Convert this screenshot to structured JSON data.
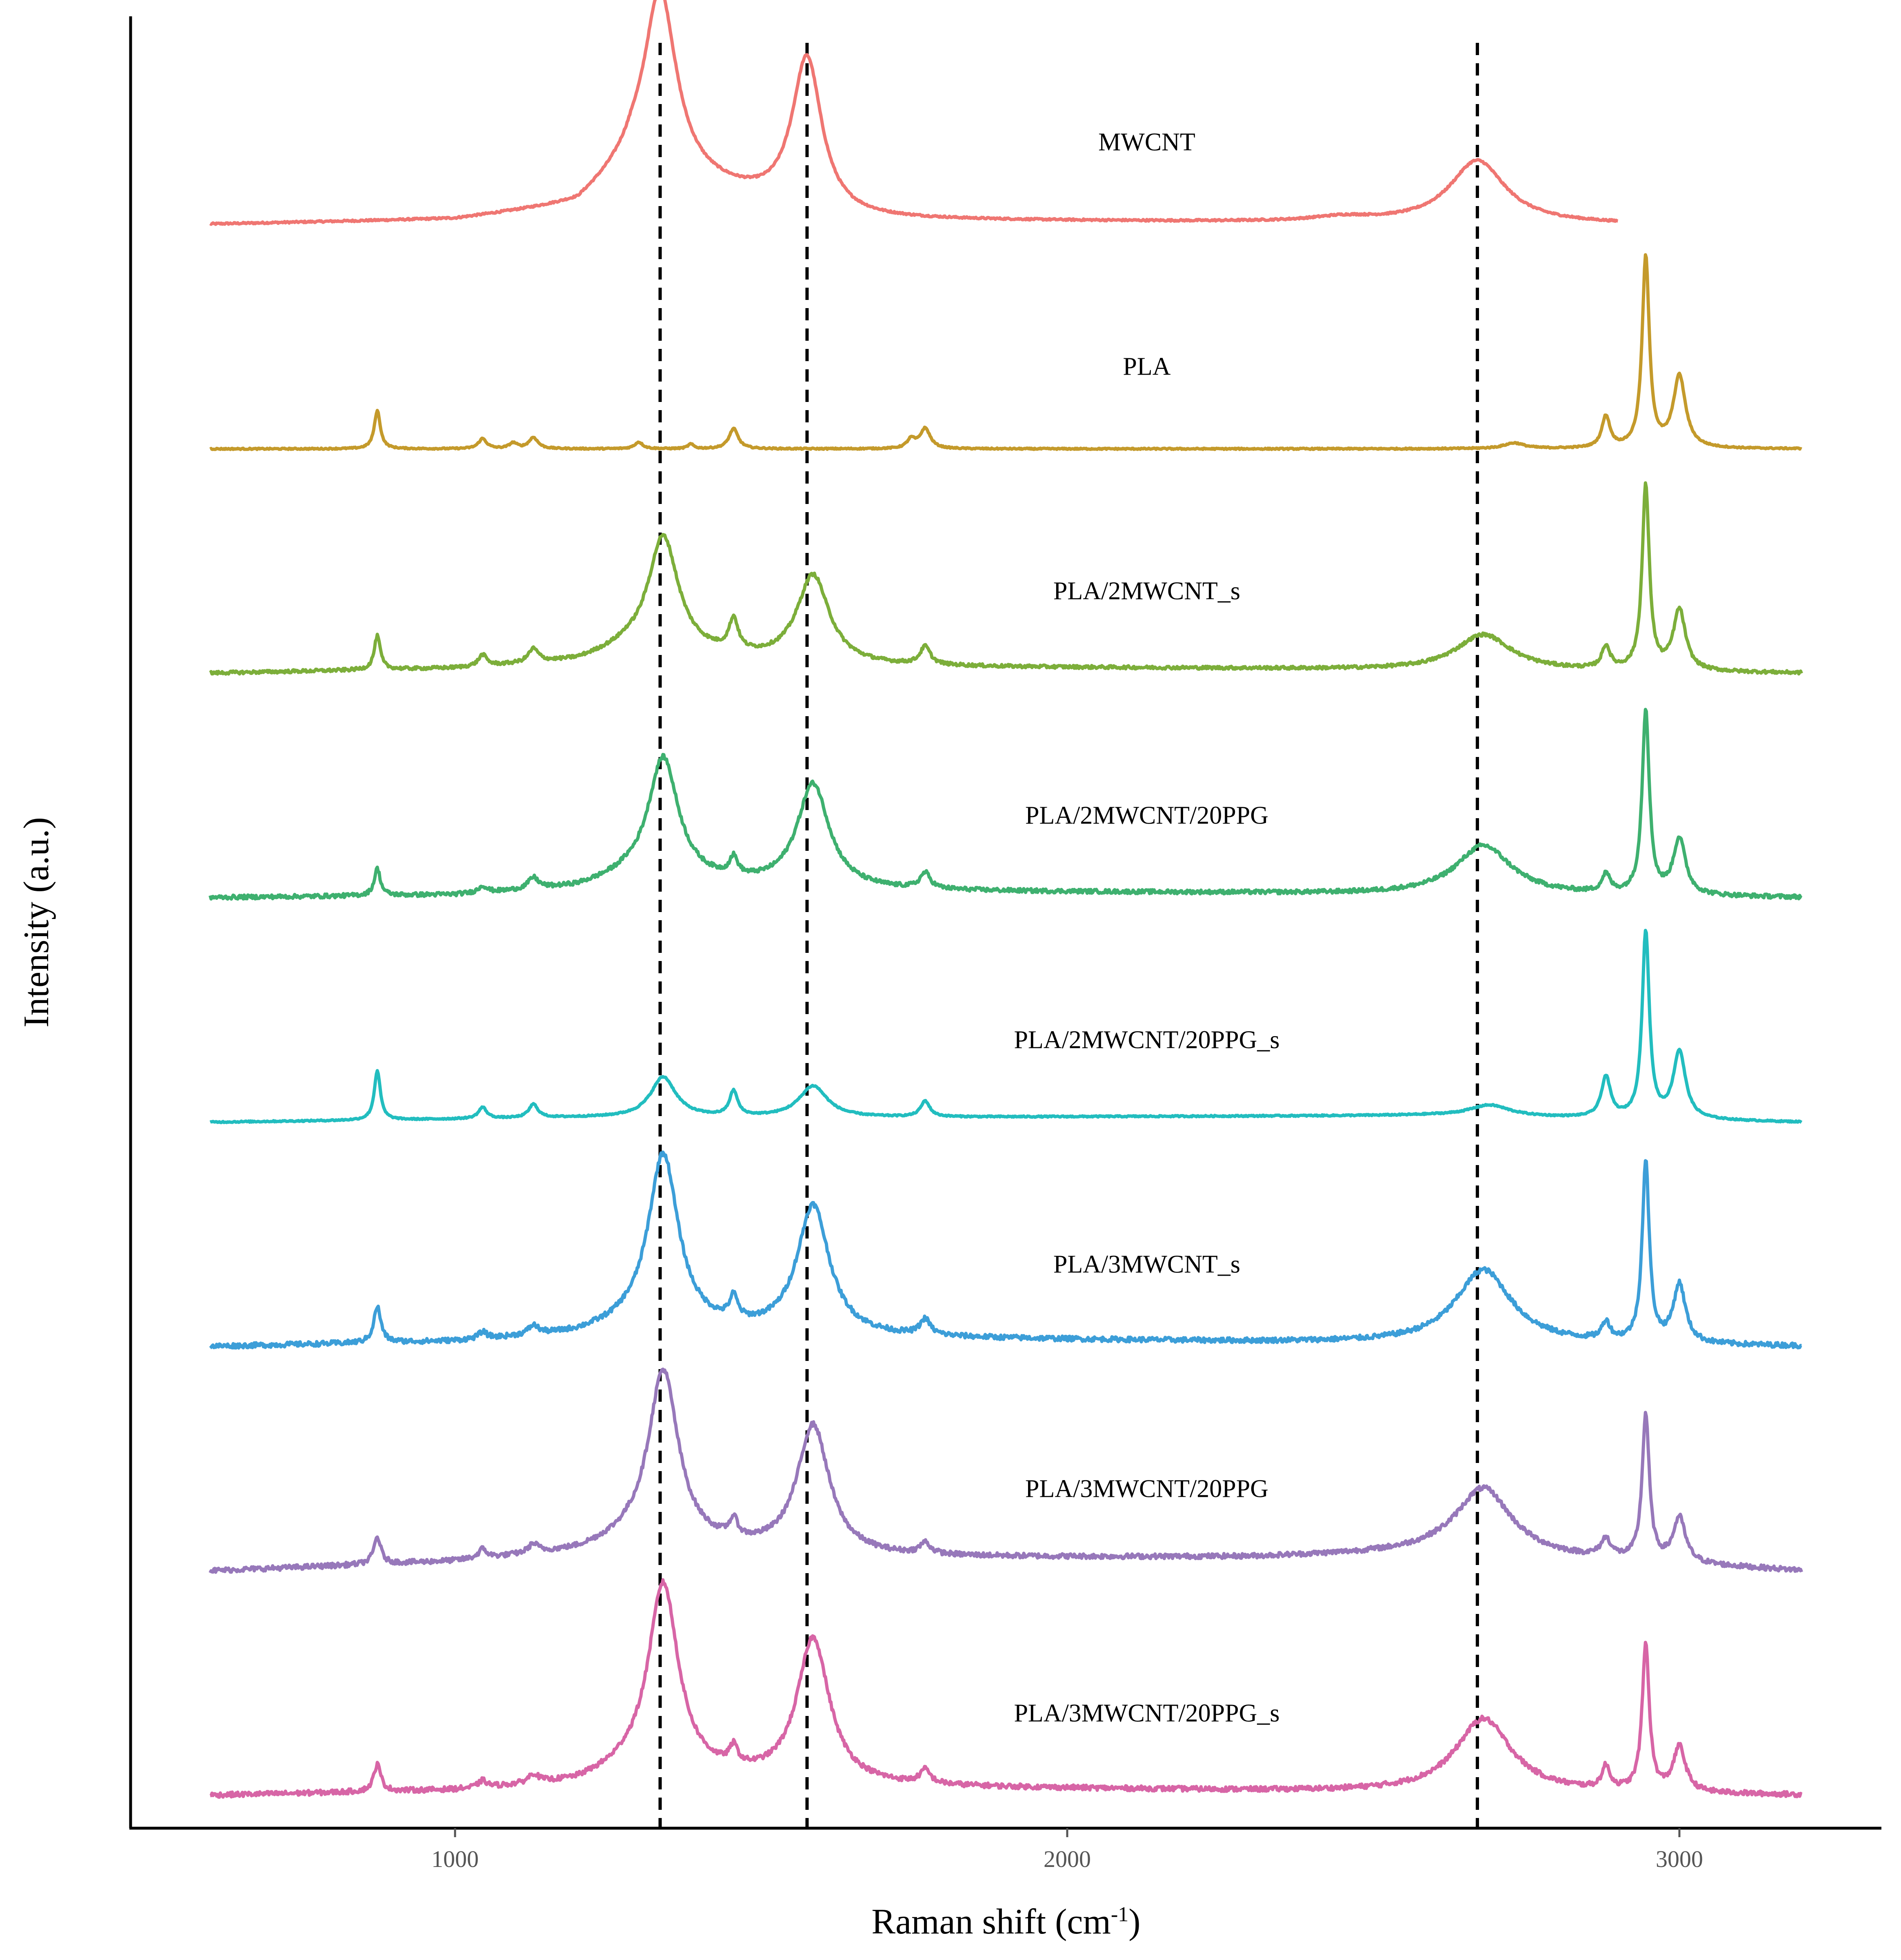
{
  "chart_data": {
    "type": "line",
    "title": "",
    "xlabel": "Raman shift (cm",
    "xlabel_superscript": "-1",
    "xlabel_suffix": ")",
    "ylabel": "Intensity (a.u.)",
    "xlim": [
      470,
      3330
    ],
    "x_ticks": [
      1000,
      2000,
      3000
    ],
    "x_tick_labels": [
      "1000",
      "2000",
      "3000"
    ],
    "y_ticks": [],
    "grid": false,
    "legend": "none",
    "reference_lines": [
      {
        "x": 1335,
        "style": "dashed",
        "color": "#000000"
      },
      {
        "x": 1575,
        "style": "dashed",
        "color": "#000000"
      },
      {
        "x": 2670,
        "style": "dashed",
        "color": "#000000"
      }
    ],
    "series": [
      {
        "name": "MWCNT",
        "color": "#EF7672",
        "x_range": [
          600,
          2900
        ],
        "offset": 7.0,
        "noise": 0.004,
        "baseline": [
          [
            600,
            0.0
          ],
          [
            1000,
            0.02
          ],
          [
            1200,
            0.08
          ],
          [
            1290,
            0.25
          ],
          [
            1600,
            0.02
          ],
          [
            2900,
            0.0
          ]
        ],
        "peaks": [
          [
            1335,
            0.82,
            32
          ],
          [
            1575,
            0.7,
            30
          ],
          [
            2670,
            0.28,
            55
          ],
          [
            2450,
            0.02,
            60
          ]
        ]
      },
      {
        "name": "PLA",
        "color": "#C49A2B",
        "x_range": [
          600,
          3200
        ],
        "offset": 6.0,
        "noise": 0.003,
        "baseline": [
          [
            600,
            0.0
          ],
          [
            3200,
            0.0
          ]
        ],
        "peaks": [
          [
            873,
            0.17,
            6
          ],
          [
            1045,
            0.045,
            8
          ],
          [
            1095,
            0.025,
            8
          ],
          [
            1128,
            0.05,
            9
          ],
          [
            1300,
            0.03,
            8
          ],
          [
            1385,
            0.02,
            6
          ],
          [
            1455,
            0.09,
            9
          ],
          [
            1768,
            0.09,
            10
          ],
          [
            1745,
            0.04,
            8
          ],
          [
            2730,
            0.025,
            20
          ],
          [
            2880,
            0.14,
            8
          ],
          [
            2945,
            0.85,
            7
          ],
          [
            3000,
            0.32,
            12
          ]
        ]
      },
      {
        "name": "PLA/2MWCNT_s",
        "color": "#7CAE3A",
        "x_range": [
          600,
          3200
        ],
        "offset": 5.0,
        "noise": 0.007,
        "baseline": [
          [
            600,
            0.0
          ],
          [
            1000,
            0.02
          ],
          [
            1200,
            0.05
          ],
          [
            1280,
            0.1
          ],
          [
            1600,
            0.03
          ],
          [
            2300,
            0.02
          ],
          [
            3200,
            0.0
          ]
        ],
        "peaks": [
          [
            873,
            0.15,
            6
          ],
          [
            1045,
            0.05,
            8
          ],
          [
            1128,
            0.06,
            10
          ],
          [
            1340,
            0.52,
            30
          ],
          [
            1455,
            0.14,
            9
          ],
          [
            1585,
            0.4,
            32
          ],
          [
            1768,
            0.08,
            10
          ],
          [
            2680,
            0.16,
            55
          ],
          [
            2880,
            0.1,
            8
          ],
          [
            2945,
            0.82,
            7
          ],
          [
            3000,
            0.27,
            12
          ]
        ]
      },
      {
        "name": "PLA/2MWCNT/20PPG",
        "color": "#3EB06F",
        "x_range": [
          600,
          3200
        ],
        "offset": 4.0,
        "noise": 0.009,
        "baseline": [
          [
            600,
            0.0
          ],
          [
            1000,
            0.01
          ],
          [
            1200,
            0.04
          ],
          [
            1280,
            0.08
          ],
          [
            1600,
            0.03
          ],
          [
            2300,
            0.02
          ],
          [
            3200,
            0.0
          ]
        ],
        "peaks": [
          [
            873,
            0.12,
            6
          ],
          [
            1045,
            0.03,
            8
          ],
          [
            1128,
            0.05,
            10
          ],
          [
            1340,
            0.55,
            30
          ],
          [
            1455,
            0.08,
            8
          ],
          [
            1585,
            0.47,
            32
          ],
          [
            1768,
            0.07,
            10
          ],
          [
            2680,
            0.22,
            55
          ],
          [
            2880,
            0.08,
            8
          ],
          [
            2945,
            0.82,
            7
          ],
          [
            3000,
            0.25,
            12
          ]
        ]
      },
      {
        "name": "PLA/2MWCNT/20PPG_s",
        "color": "#22BDBF",
        "x_range": [
          600,
          3200
        ],
        "offset": 3.0,
        "noise": 0.003,
        "baseline": [
          [
            600,
            0.0
          ],
          [
            1200,
            0.02
          ],
          [
            1600,
            0.02
          ],
          [
            2600,
            0.03
          ],
          [
            3200,
            0.0
          ]
        ],
        "peaks": [
          [
            873,
            0.22,
            6
          ],
          [
            1045,
            0.05,
            8
          ],
          [
            1128,
            0.06,
            9
          ],
          [
            1340,
            0.18,
            25
          ],
          [
            1455,
            0.11,
            8
          ],
          [
            1585,
            0.14,
            28
          ],
          [
            1768,
            0.07,
            9
          ],
          [
            2690,
            0.05,
            40
          ],
          [
            2880,
            0.18,
            9
          ],
          [
            2945,
            0.83,
            7
          ],
          [
            3000,
            0.3,
            12
          ]
        ]
      },
      {
        "name": "PLA/3MWCNT_s",
        "color": "#3C9ED8",
        "x_range": [
          600,
          3200
        ],
        "offset": 2.0,
        "noise": 0.011,
        "baseline": [
          [
            600,
            0.0
          ],
          [
            1000,
            0.02
          ],
          [
            1200,
            0.05
          ],
          [
            1280,
            0.08
          ],
          [
            1600,
            0.04
          ],
          [
            2300,
            0.02
          ],
          [
            3200,
            0.0
          ]
        ],
        "peaks": [
          [
            873,
            0.16,
            7
          ],
          [
            1045,
            0.03,
            8
          ],
          [
            1128,
            0.04,
            10
          ],
          [
            1340,
            0.78,
            30
          ],
          [
            1455,
            0.1,
            8
          ],
          [
            1585,
            0.58,
            32
          ],
          [
            1768,
            0.07,
            10
          ],
          [
            2680,
            0.33,
            55
          ],
          [
            2880,
            0.08,
            8
          ],
          [
            2945,
            0.8,
            7
          ],
          [
            3000,
            0.26,
            12
          ]
        ]
      },
      {
        "name": "PLA/3MWCNT/20PPG",
        "color": "#9778BA",
        "x_range": [
          600,
          3200
        ],
        "offset": 1.0,
        "noise": 0.011,
        "baseline": [
          [
            600,
            0.0
          ],
          [
            1000,
            0.04
          ],
          [
            1200,
            0.08
          ],
          [
            1280,
            0.12
          ],
          [
            1600,
            0.06
          ],
          [
            2300,
            0.06
          ],
          [
            2600,
            0.08
          ],
          [
            3200,
            0.0
          ]
        ],
        "peaks": [
          [
            873,
            0.12,
            7
          ],
          [
            1045,
            0.04,
            8
          ],
          [
            1128,
            0.04,
            10
          ],
          [
            1340,
            0.78,
            30
          ],
          [
            1455,
            0.08,
            8
          ],
          [
            1585,
            0.58,
            32
          ],
          [
            1768,
            0.05,
            10
          ],
          [
            2680,
            0.3,
            55
          ],
          [
            2880,
            0.08,
            10
          ],
          [
            2945,
            0.65,
            7
          ],
          [
            3000,
            0.2,
            12
          ]
        ]
      },
      {
        "name": "PLA/3MWCNT/20PPG_s",
        "color": "#D765A6",
        "x_range": [
          600,
          3200
        ],
        "offset": 0.0,
        "noise": 0.011,
        "baseline": [
          [
            600,
            0.0
          ],
          [
            1000,
            0.02
          ],
          [
            1200,
            0.05
          ],
          [
            1280,
            0.1
          ],
          [
            1600,
            0.04
          ],
          [
            2300,
            0.02
          ],
          [
            3200,
            0.0
          ]
        ],
        "peaks": [
          [
            873,
            0.12,
            7
          ],
          [
            1045,
            0.03,
            8
          ],
          [
            1128,
            0.04,
            10
          ],
          [
            1340,
            0.85,
            30
          ],
          [
            1455,
            0.08,
            8
          ],
          [
            1585,
            0.65,
            32
          ],
          [
            1768,
            0.06,
            10
          ],
          [
            2680,
            0.33,
            55
          ],
          [
            2880,
            0.1,
            8
          ],
          [
            2945,
            0.65,
            7
          ],
          [
            3000,
            0.2,
            12
          ]
        ]
      }
    ]
  }
}
